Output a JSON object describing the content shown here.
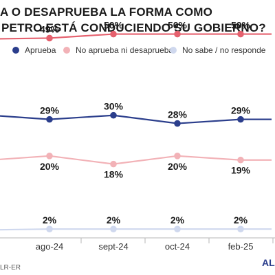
{
  "title_lines": [
    "A O DESAPRUEBA LA FORMA COMO",
    "PETRO ESTÁ CONDUCIENDO SU GOBIERNO?"
  ],
  "source_text": "LR-ER",
  "brand_text": "AL",
  "chart_data": {
    "type": "line",
    "categories": [
      "ago-24",
      "sept-24",
      "oct-24",
      "feb-25"
    ],
    "ylim": [
      0,
      55
    ],
    "grid": false,
    "legend_position": "top",
    "series": [
      {
        "name": "",
        "color": "#e5616e",
        "values": [
          49,
          50,
          50,
          50
        ],
        "labels": [
          "49%",
          "50%",
          "50%",
          "50%"
        ],
        "label_position": "above"
      },
      {
        "name": "Aprueba",
        "color": "#2b3e8c",
        "values": [
          29,
          30,
          28,
          29
        ],
        "labels": [
          "29%",
          "30%",
          "28%",
          "29%"
        ],
        "label_position": "above"
      },
      {
        "name": "No aprueba ni desaprueba",
        "color": "#f2b2b7",
        "values": [
          20,
          18,
          20,
          19
        ],
        "labels": [
          "20%",
          "18%",
          "20%",
          "19%"
        ],
        "label_position": "below"
      },
      {
        "name": "No sabe / no responde",
        "color": "#cfd8ee",
        "values": [
          2,
          2,
          2,
          2
        ],
        "labels": [
          "2%",
          "2%",
          "2%",
          "2%"
        ],
        "label_position": "above"
      }
    ]
  }
}
